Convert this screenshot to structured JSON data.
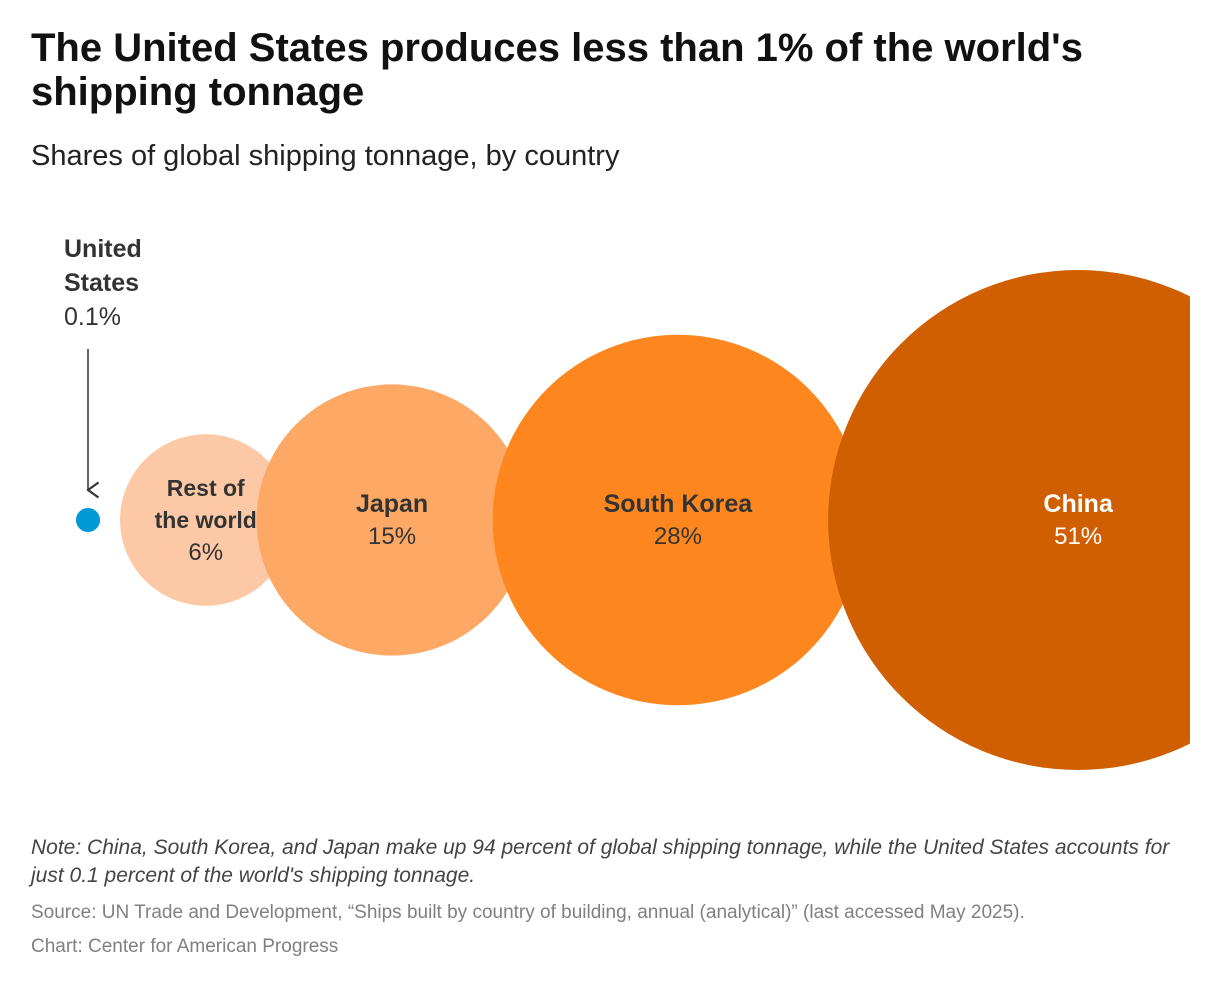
{
  "header": {
    "title": "The United States produces less than 1% of the world's shipping tonnage",
    "subtitle": "Shares of global shipping tonnage, by country"
  },
  "footer": {
    "note": "Note: China, South Korea, and Japan make up 94 percent of global shipping tonnage, while the United States accounts for just 0.1 percent of the world's shipping tonnage.",
    "source": "Source: UN Trade and Development, “Ships built by country of building, annual (analytical)” (last accessed May 2025).",
    "credit": "Chart: Center for American Progress"
  },
  "chart_data": {
    "type": "bubble",
    "title": "The United States produces less than 1% of the world's shipping tonnage",
    "subtitle": "Shares of global shipping tonnage, by country",
    "unit": "%",
    "series": [
      {
        "id": "united-states",
        "label_lines": [
          "United",
          "States"
        ],
        "value": 0.1,
        "value_label": "0.1%",
        "color": "#0099d5",
        "label_color": "#333333",
        "annotation": "arrow-above"
      },
      {
        "id": "rest-of-world",
        "label_lines": [
          "Rest of",
          "the world"
        ],
        "value": 6,
        "value_label": "6%",
        "color": "#fcc8a5",
        "label_color": "#333333"
      },
      {
        "id": "japan",
        "label_lines": [
          "Japan"
        ],
        "value": 15,
        "value_label": "15%",
        "color": "#fda865",
        "label_color": "#333333"
      },
      {
        "id": "south-korea",
        "label_lines": [
          "South Korea"
        ],
        "value": 28,
        "value_label": "28%",
        "color": "#fd871e",
        "label_color": "#333333"
      },
      {
        "id": "china",
        "label_lines": [
          "China"
        ],
        "value": 51,
        "value_label": "51%",
        "color": "#d05f02",
        "label_color": "#ffffff"
      }
    ]
  }
}
